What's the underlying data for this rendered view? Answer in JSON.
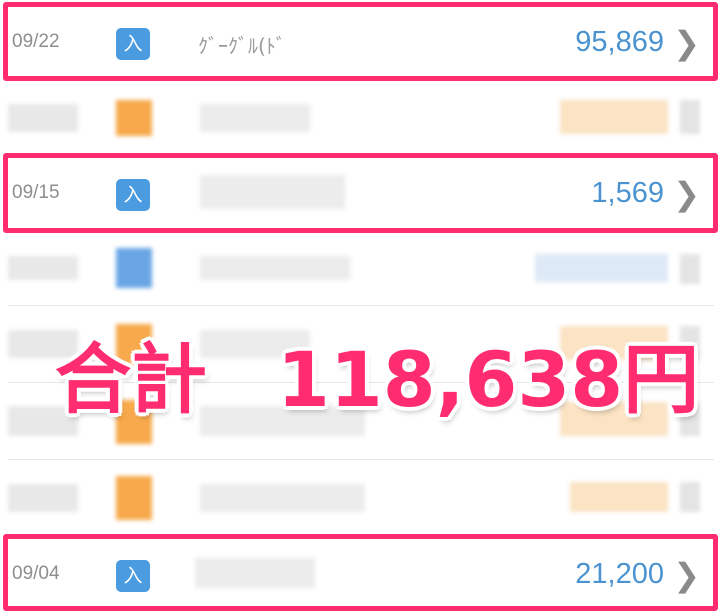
{
  "rows": [
    {
      "date": "09/22",
      "badge": "入",
      "name": "ｸﾞｰｸﾞﾙ(ﾄﾞ",
      "amount": "95,869",
      "highlighted": true
    },
    {
      "blurred": true,
      "badge_color": "#f7a94b"
    },
    {
      "date": "09/15",
      "badge": "入",
      "amount": "1,569",
      "highlighted": true
    },
    {
      "blurred": true,
      "badge_color": "#4a93e0"
    },
    {
      "blurred": true,
      "badge_color": "#f7a94b"
    },
    {
      "blurred": true,
      "badge_color": "#f7a94b"
    },
    {
      "blurred": true,
      "badge_color": "#f7a94b"
    },
    {
      "date": "09/04",
      "badge": "入",
      "amount": "21,200",
      "highlighted": true
    }
  ],
  "overlay": {
    "label": "合計",
    "total": "118,638円"
  },
  "colors": {
    "highlight": "#ff2d6f",
    "income_badge": "#4a9be0",
    "amount": "#4a93d0"
  },
  "icons": {
    "chevron": "chevron-right-icon"
  }
}
